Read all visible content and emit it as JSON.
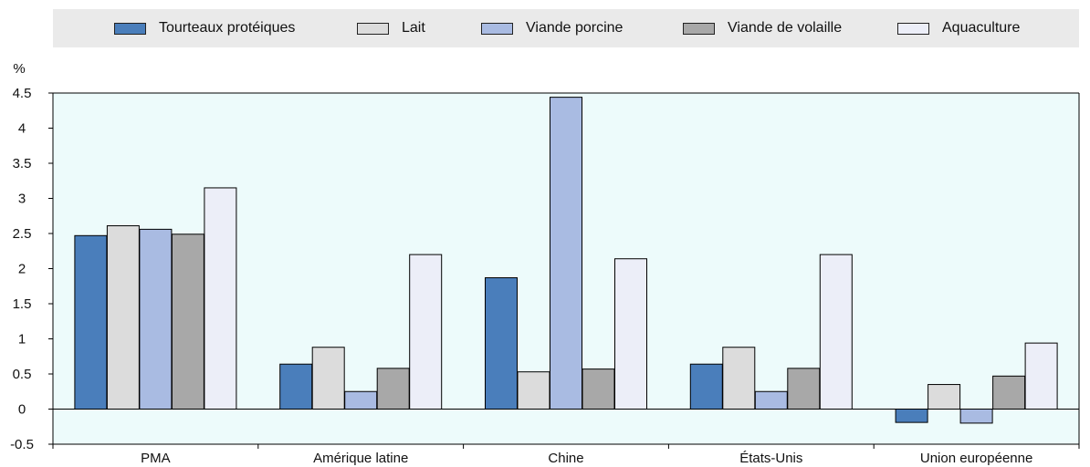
{
  "chart_data": {
    "type": "bar",
    "ylabel": "%",
    "ylim": [
      -0.5,
      4.5
    ],
    "yticks": [
      "4.5",
      "4",
      "3.5",
      "3",
      "2.5",
      "2",
      "1.5",
      "1",
      "0.5",
      "0",
      "-0.5"
    ],
    "categories": [
      "PMA",
      "Amérique latine",
      "Chine",
      "États-Unis",
      "Union européenne"
    ],
    "series": [
      {
        "name": "Tourteaux protéiques",
        "color": "#4a7ebb",
        "values": [
          2.47,
          0.64,
          1.87,
          0.64,
          -0.19
        ]
      },
      {
        "name": "Lait",
        "color": "#dcdcdc",
        "values": [
          2.61,
          0.88,
          0.53,
          0.88,
          0.35
        ]
      },
      {
        "name": "Viande porcine",
        "color": "#a9bbe2",
        "values": [
          2.56,
          0.25,
          4.44,
          0.25,
          -0.2
        ]
      },
      {
        "name": "Viande de volaille",
        "color": "#a8a8a8",
        "values": [
          2.49,
          0.58,
          0.57,
          0.58,
          0.47
        ]
      },
      {
        "name": "Aquaculture",
        "color": "#eceef8",
        "values": [
          3.15,
          2.2,
          2.14,
          2.2,
          0.94
        ]
      }
    ],
    "plot_background": "#edfbfb",
    "legend_background": "#eaeaea",
    "legend_position": "top"
  }
}
